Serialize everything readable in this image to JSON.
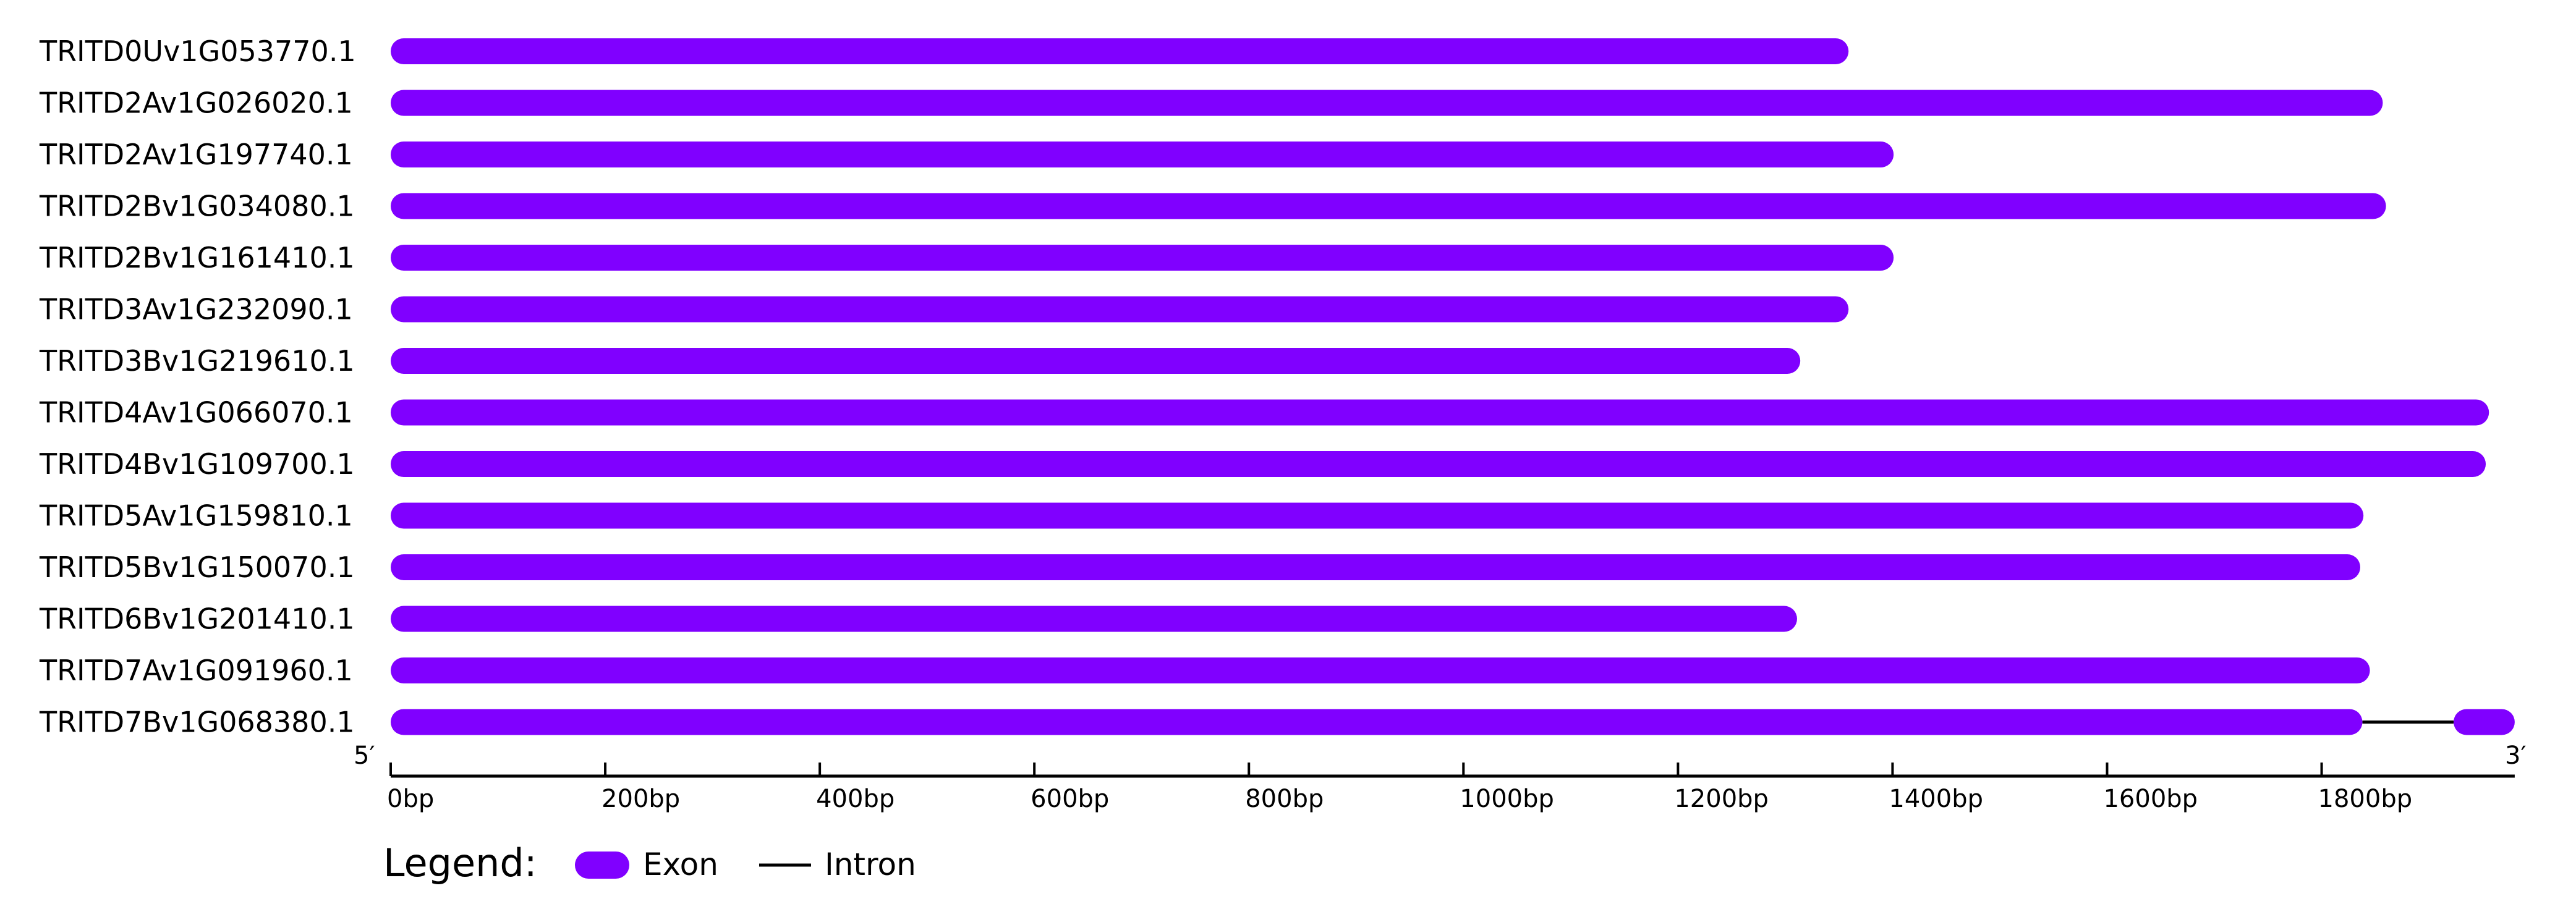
{
  "chart_data": {
    "type": "gene-structure",
    "axis": {
      "min": 0,
      "max": 1980,
      "ticks": [
        {
          "value": 0,
          "label": "0bp"
        },
        {
          "value": 200,
          "label": "200bp"
        },
        {
          "value": 400,
          "label": "400bp"
        },
        {
          "value": 600,
          "label": "600bp"
        },
        {
          "value": 800,
          "label": "800bp"
        },
        {
          "value": 1000,
          "label": "1000bp"
        },
        {
          "value": 1200,
          "label": "1200bp"
        },
        {
          "value": 1400,
          "label": "1400bp"
        },
        {
          "value": 1600,
          "label": "1600bp"
        },
        {
          "value": 1800,
          "label": "1800bp"
        }
      ],
      "start_label": "5′",
      "end_label": "3′"
    },
    "genes": [
      {
        "name": "TRITD0Uv1G053770.1",
        "exons": [
          [
            0,
            1359
          ]
        ],
        "introns": []
      },
      {
        "name": "TRITD2Av1G026020.1",
        "exons": [
          [
            0,
            1857
          ]
        ],
        "introns": []
      },
      {
        "name": "TRITD2Av1G197740.1",
        "exons": [
          [
            0,
            1401
          ]
        ],
        "introns": []
      },
      {
        "name": "TRITD2Bv1G034080.1",
        "exons": [
          [
            0,
            1860
          ]
        ],
        "introns": []
      },
      {
        "name": "TRITD2Bv1G161410.1",
        "exons": [
          [
            0,
            1401
          ]
        ],
        "introns": []
      },
      {
        "name": "TRITD3Av1G232090.1",
        "exons": [
          [
            0,
            1359
          ]
        ],
        "introns": []
      },
      {
        "name": "TRITD3Bv1G219610.1",
        "exons": [
          [
            0,
            1314
          ]
        ],
        "introns": []
      },
      {
        "name": "TRITD4Av1G066070.1",
        "exons": [
          [
            0,
            1956
          ]
        ],
        "introns": []
      },
      {
        "name": "TRITD4Bv1G109700.1",
        "exons": [
          [
            0,
            1953
          ]
        ],
        "introns": []
      },
      {
        "name": "TRITD5Av1G159810.1",
        "exons": [
          [
            0,
            1839
          ]
        ],
        "introns": []
      },
      {
        "name": "TRITD5Bv1G150070.1",
        "exons": [
          [
            0,
            1836
          ]
        ],
        "introns": []
      },
      {
        "name": "TRITD6Bv1G201410.1",
        "exons": [
          [
            0,
            1311
          ]
        ],
        "introns": []
      },
      {
        "name": "TRITD7Av1G091960.1",
        "exons": [
          [
            0,
            1845
          ]
        ],
        "introns": []
      },
      {
        "name": "TRITD7Bv1G068380.1",
        "exons": [
          [
            0,
            1838
          ],
          [
            1923,
            1980
          ]
        ],
        "introns": [
          [
            1838,
            1923
          ]
        ]
      }
    ],
    "legend": {
      "title": "Legend:",
      "items": [
        {
          "kind": "exon",
          "label": "Exon"
        },
        {
          "kind": "intron",
          "label": "Intron"
        }
      ]
    },
    "colors": {
      "exon": "#8000ff",
      "intron": "#000000",
      "axis": "#000000"
    }
  }
}
